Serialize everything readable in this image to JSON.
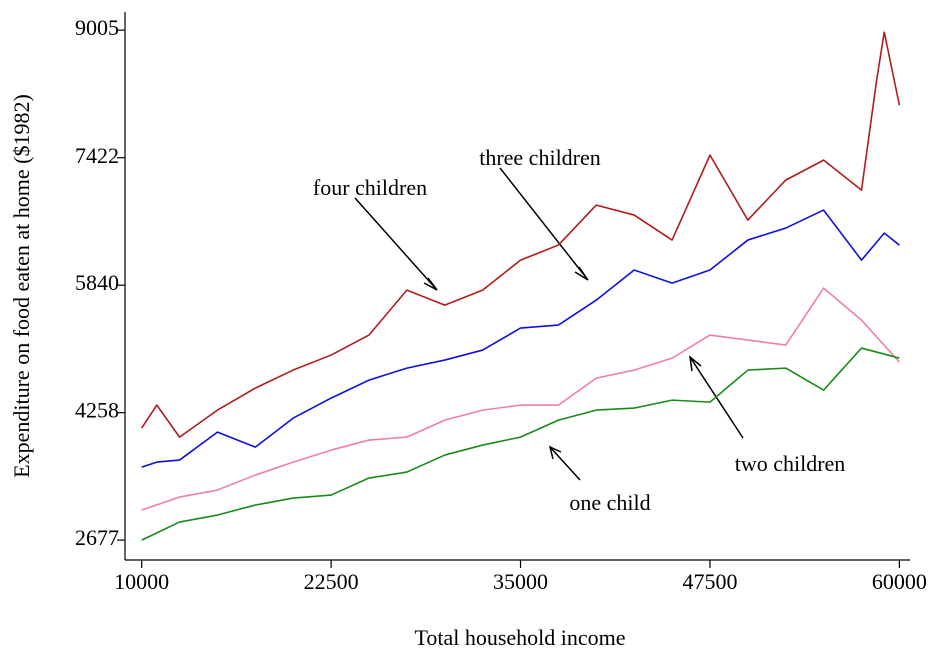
{
  "chart_data": {
    "type": "line",
    "x_label": "Total household income",
    "y_label": "Expenditure on food eaten at home ($1982)",
    "xlim": [
      8900,
      60700
    ],
    "ylim": [
      2430,
      9230
    ],
    "xticks": [
      10000,
      22500,
      35000,
      47500,
      60000
    ],
    "yticks": [
      2677,
      4258,
      5840,
      7422,
      9005
    ],
    "annotations": [
      "four children",
      "three children",
      "two children",
      "one child"
    ],
    "series": [
      {
        "name": "four children",
        "color": "#b01c1c",
        "x": [
          10000,
          11000,
          12500,
          15000,
          17500,
          20000,
          22500,
          25000,
          27500,
          30000,
          32500,
          35000,
          37500,
          40000,
          42500,
          45000,
          47500,
          50000,
          52500,
          55000,
          57500,
          58500,
          59000,
          60000
        ],
        "values": [
          4067,
          4352,
          3955,
          4290,
          4563,
          4787,
          4973,
          5221,
          5779,
          5593,
          5779,
          6151,
          6338,
          6834,
          6710,
          6400,
          7454,
          6648,
          7144,
          7392,
          7020,
          8385,
          8980,
          8074
        ]
      },
      {
        "name": "three children",
        "color": "#1010dd",
        "x": [
          10000,
          11000,
          12500,
          15000,
          17500,
          20000,
          22500,
          25000,
          27500,
          30000,
          32500,
          35000,
          37500,
          40000,
          42500,
          45000,
          47500,
          50000,
          52500,
          55000,
          57500,
          59000,
          60000
        ],
        "values": [
          3583,
          3645,
          3670,
          4017,
          3831,
          4191,
          4439,
          4662,
          4811,
          4911,
          5035,
          5308,
          5345,
          5655,
          6028,
          5866,
          6028,
          6400,
          6549,
          6772,
          6151,
          6486,
          6338
        ]
      },
      {
        "name": "two children",
        "color": "#f080a0",
        "x": [
          10000,
          12500,
          15000,
          17500,
          20000,
          22500,
          25000,
          27500,
          30000,
          32500,
          35000,
          37500,
          40000,
          42500,
          45000,
          47500,
          50000,
          52500,
          55000,
          57500,
          60000
        ],
        "values": [
          3050,
          3211,
          3298,
          3484,
          3645,
          3794,
          3918,
          3955,
          4166,
          4290,
          4352,
          4352,
          4687,
          4787,
          4935,
          5221,
          5159,
          5097,
          5804,
          5407,
          4886
        ]
      },
      {
        "name": "one child",
        "color": "#1a8a1a",
        "x": [
          10000,
          12500,
          15000,
          17500,
          20000,
          22500,
          25000,
          27500,
          30000,
          32500,
          35000,
          37500,
          40000,
          42500,
          45000,
          47500,
          50000,
          52500,
          55000,
          57500,
          60000
        ],
        "values": [
          2677,
          2901,
          2988,
          3112,
          3199,
          3236,
          3447,
          3521,
          3732,
          3856,
          3955,
          4166,
          4290,
          4315,
          4414,
          4389,
          4787,
          4811,
          4538,
          5060,
          4935
        ]
      }
    ]
  }
}
